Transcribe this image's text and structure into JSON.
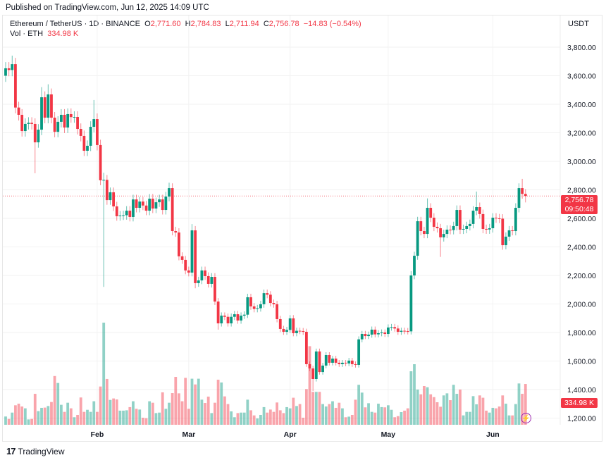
{
  "header": {
    "published": "Published on TradingView.com, Jun 12, 2025 14:09 UTC"
  },
  "legend": {
    "symbol": "Ethereum / TetherUS · 1D · BINANCE",
    "o_label": "O",
    "o": "2,771.60",
    "h_label": "H",
    "h": "2,784.83",
    "l_label": "L",
    "l": "2,711.94",
    "c_label": "C",
    "c": "2,756.78",
    "change": "−14.83 (−0.54%)",
    "vol_label": "Vol · ETH",
    "vol": "334.98 K"
  },
  "currency": "USDT",
  "price_tag": {
    "price": "2,756.78",
    "countdown": "09:50:48"
  },
  "volume_tag": "334.98 K",
  "footer": {
    "brand": "TradingView"
  },
  "colors": {
    "up": "#089981",
    "down": "#F23645"
  },
  "chart_data": {
    "type": "candlestick",
    "title": "Ethereum / TetherUS · 1D · BINANCE",
    "ylim": [
      1200,
      3800
    ],
    "yticks": [
      "3,800.00",
      "3,600.00",
      "3,400.00",
      "3,200.00",
      "3,000.00",
      "2,800.00",
      "2,600.00",
      "2,400.00",
      "2,200.00",
      "2,000.00",
      "1,800.00",
      "1,600.00",
      "1,400.00",
      "1,200.00"
    ],
    "ytick_values": [
      3800,
      3600,
      3400,
      3200,
      3000,
      2800,
      2600,
      2400,
      2200,
      2000,
      1800,
      1600,
      1400,
      1200
    ],
    "xticks": [
      {
        "label": "Feb",
        "index": 28
      },
      {
        "label": "Mar",
        "index": 56
      },
      {
        "label": "Apr",
        "index": 87
      },
      {
        "label": "May",
        "index": 117
      },
      {
        "label": "Jun",
        "index": 149
      }
    ],
    "first_open": 3600,
    "close": [
      3652,
      3640,
      3681,
      3377,
      3326,
      3212,
      3262,
      3270,
      3262,
      3133,
      3222,
      3449,
      3306,
      3469,
      3306,
      3207,
      3277,
      3326,
      3237,
      3331,
      3310,
      3311,
      3227,
      3178,
      3074,
      3109,
      3242,
      3296,
      3114,
      2867,
      2870,
      2728,
      2783,
      2684,
      2615,
      2620,
      2622,
      2654,
      2610,
      2733,
      2674,
      2718,
      2690,
      2654,
      2738,
      2669,
      2713,
      2733,
      2659,
      2753,
      2812,
      2511,
      2501,
      2334,
      2309,
      2235,
      2220,
      2516,
      2146,
      2165,
      2235,
      2195,
      2141,
      2190,
      2017,
      1864,
      1918,
      1910,
      1864,
      1910,
      1928,
      1884,
      1918,
      1925,
      2047,
      1983,
      1965,
      1970,
      1998,
      2076,
      2065,
      2007,
      1998,
      1894,
      1825,
      1805,
      1818,
      1899,
      1795,
      1812,
      1810,
      1805,
      1578,
      1548,
      1474,
      1667,
      1523,
      1568,
      1642,
      1588,
      1617,
      1588,
      1578,
      1588,
      1583,
      1603,
      1578,
      1573,
      1752,
      1790,
      1775,
      1785,
      1820,
      1787,
      1795,
      1800,
      1790,
      1835,
      1838,
      1828,
      1805,
      1812,
      1810,
      1808,
      2200,
      2338,
      2580,
      2511,
      2491,
      2674,
      2605,
      2541,
      2531,
      2467,
      2491,
      2521,
      2518,
      2546,
      2659,
      2521,
      2526,
      2546,
      2561,
      2654,
      2679,
      2630,
      2526,
      2522,
      2531,
      2605,
      2600,
      2598,
      2412,
      2472,
      2516,
      2511,
      2674,
      2812,
      2771.6,
      2756.78
    ],
    "high_overrides": {
      "2": 3741,
      "11": 3520,
      "13": 3540,
      "27": 3430,
      "30": 2920,
      "50": 2850,
      "57": 2560,
      "124": 2230,
      "129": 2740,
      "144": 2788,
      "158": 2877
    },
    "low_overrides": {
      "9": 2916,
      "30": 2120,
      "58": 2110,
      "65": 1820,
      "94": 1390,
      "133": 2330,
      "152": 2380,
      "159": 2711.94
    },
    "volume_unit": "K",
    "volume": [
      68,
      48,
      100,
      160,
      173,
      150,
      135,
      44,
      48,
      254,
      112,
      139,
      141,
      154,
      187,
      400,
      343,
      164,
      106,
      181,
      135,
      62,
      81,
      224,
      106,
      123,
      106,
      193,
      106,
      314,
      838,
      376,
      204,
      216,
      208,
      116,
      116,
      119,
      145,
      193,
      131,
      125,
      58,
      54,
      193,
      181,
      96,
      100,
      266,
      131,
      181,
      260,
      393,
      258,
      193,
      385,
      131,
      378,
      331,
      378,
      206,
      179,
      231,
      96,
      181,
      370,
      347,
      233,
      170,
      110,
      62,
      96,
      100,
      100,
      206,
      119,
      77,
      52,
      81,
      145,
      100,
      125,
      106,
      183,
      119,
      96,
      145,
      135,
      222,
      154,
      170,
      58,
      293,
      645,
      270,
      270,
      270,
      170,
      150,
      170,
      193,
      139,
      181,
      135,
      62,
      67,
      81,
      206,
      328,
      264,
      143,
      177,
      106,
      100,
      173,
      145,
      143,
      160,
      123,
      62,
      71,
      104,
      116,
      135,
      439,
      497,
      289,
      250,
      318,
      308,
      250,
      227,
      185,
      148,
      241,
      258,
      202,
      328,
      254,
      289,
      77,
      106,
      106,
      235,
      168,
      241,
      222,
      116,
      100,
      139,
      135,
      150,
      241,
      173,
      77,
      77,
      170,
      339,
      254,
      334.98
    ]
  }
}
